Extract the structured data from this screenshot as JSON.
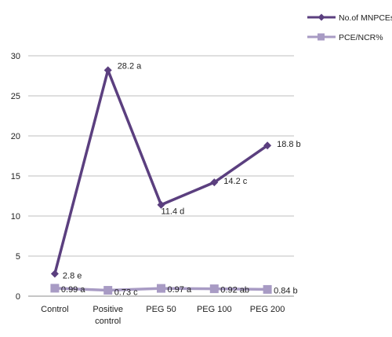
{
  "chart_data": {
    "type": "line",
    "title": "",
    "xlabel": "",
    "ylabel": "",
    "categories": [
      [
        "Control"
      ],
      [
        "Positive",
        "control"
      ],
      [
        "PEG 50"
      ],
      [
        "PEG 100"
      ],
      [
        "PEG 200"
      ]
    ],
    "ylim": [
      0,
      30
    ],
    "y_ticks": [
      0,
      5,
      10,
      15,
      20,
      25,
      30
    ],
    "grid": "horizontal",
    "legend_position": "top-right",
    "series": [
      {
        "name": "No.of MNPCEs",
        "color": "#5b3f7f",
        "marker": "diamond",
        "values": [
          2.8,
          28.2,
          11.4,
          14.2,
          18.8
        ],
        "labels": [
          "2.8 e",
          "28.2 a",
          "11.4 d",
          "14.2  c",
          "18.8  b"
        ]
      },
      {
        "name": "PCE/NCR%",
        "color": "#a89bc4",
        "marker": "square",
        "values": [
          0.99,
          0.73,
          0.97,
          0.92,
          0.84
        ],
        "labels": [
          "0.99 a",
          "0.73 c",
          "0.97 a",
          "0.92  ab",
          "0.84  b"
        ]
      }
    ]
  }
}
